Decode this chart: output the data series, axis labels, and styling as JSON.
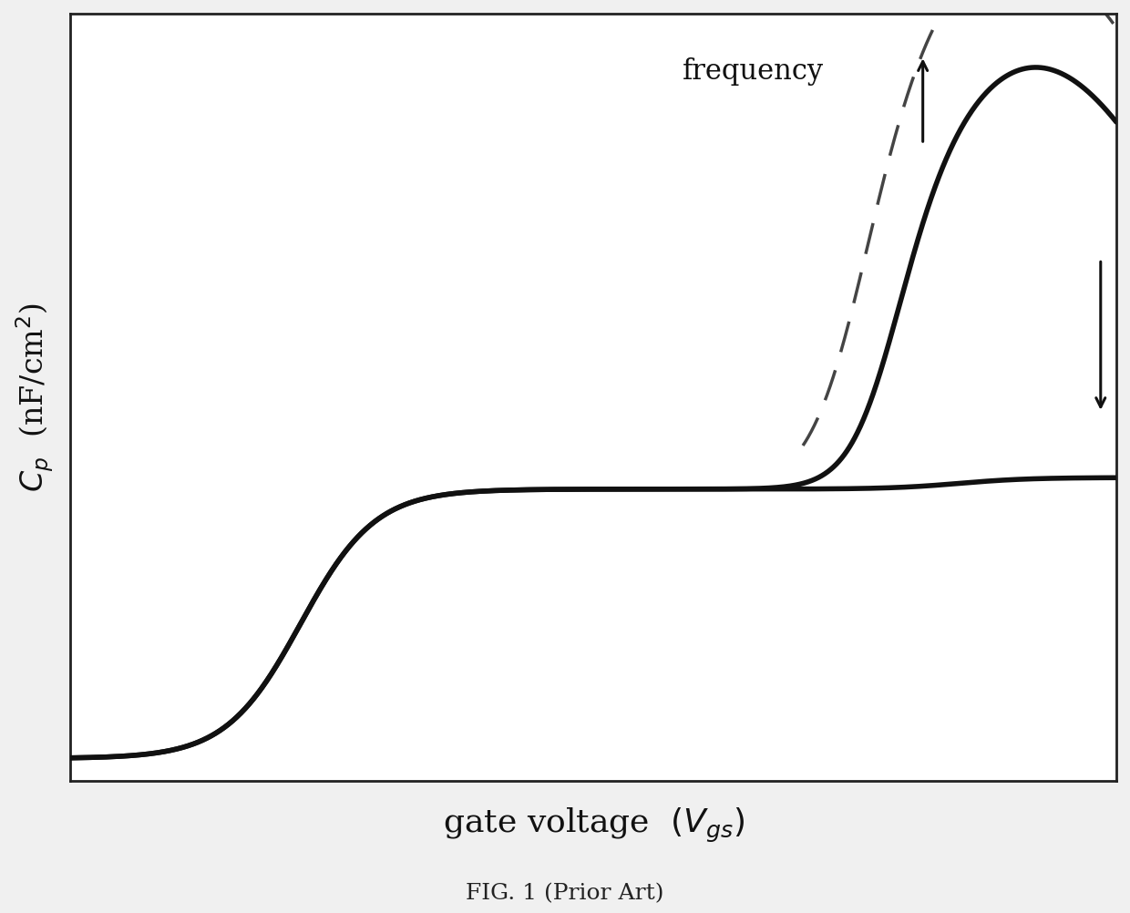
{
  "fig_bg_color": "#f0f0f0",
  "plot_bg_color": "#ffffff",
  "line_color": "#111111",
  "dashed_color": "#444444",
  "fig_caption": "FIG. 1 (Prior Art)",
  "annotation_text": "frequency",
  "xlim": [
    0,
    10
  ],
  "ylim": [
    0,
    10
  ],
  "figsize": [
    12.4,
    10.02
  ],
  "dpi": 100
}
